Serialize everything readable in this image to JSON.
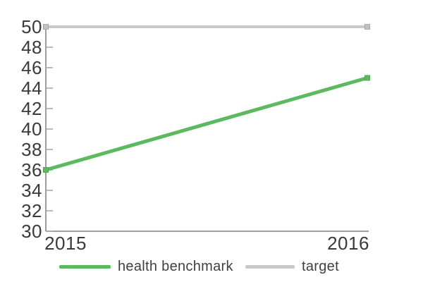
{
  "chart_data": {
    "type": "line",
    "categories": [
      "2015",
      "2016"
    ],
    "series": [
      {
        "name": "health benchmark",
        "values": [
          36,
          45
        ],
        "color": "#5cb95f"
      },
      {
        "name": "target",
        "values": [
          50,
          50
        ],
        "color": "#c9c9c9"
      }
    ],
    "title": "",
    "xlabel": "",
    "ylabel": "",
    "ylim": [
      30,
      50
    ],
    "y_ticks": [
      30,
      32,
      34,
      36,
      38,
      40,
      42,
      44,
      46,
      48,
      50
    ],
    "grid": false,
    "legend_position": "bottom",
    "marker": "square"
  },
  "colors": {
    "health_benchmark": "#5cb95f",
    "health_benchmark_marker_border": "#4ea853",
    "target": "#c9c9c9",
    "target_marker": "#c2c2c2",
    "target_marker_border": "#a8a8a8",
    "axis": "#7f7f7f",
    "tick": "#a3a3a3",
    "tick_label": "#3a3a3a"
  }
}
